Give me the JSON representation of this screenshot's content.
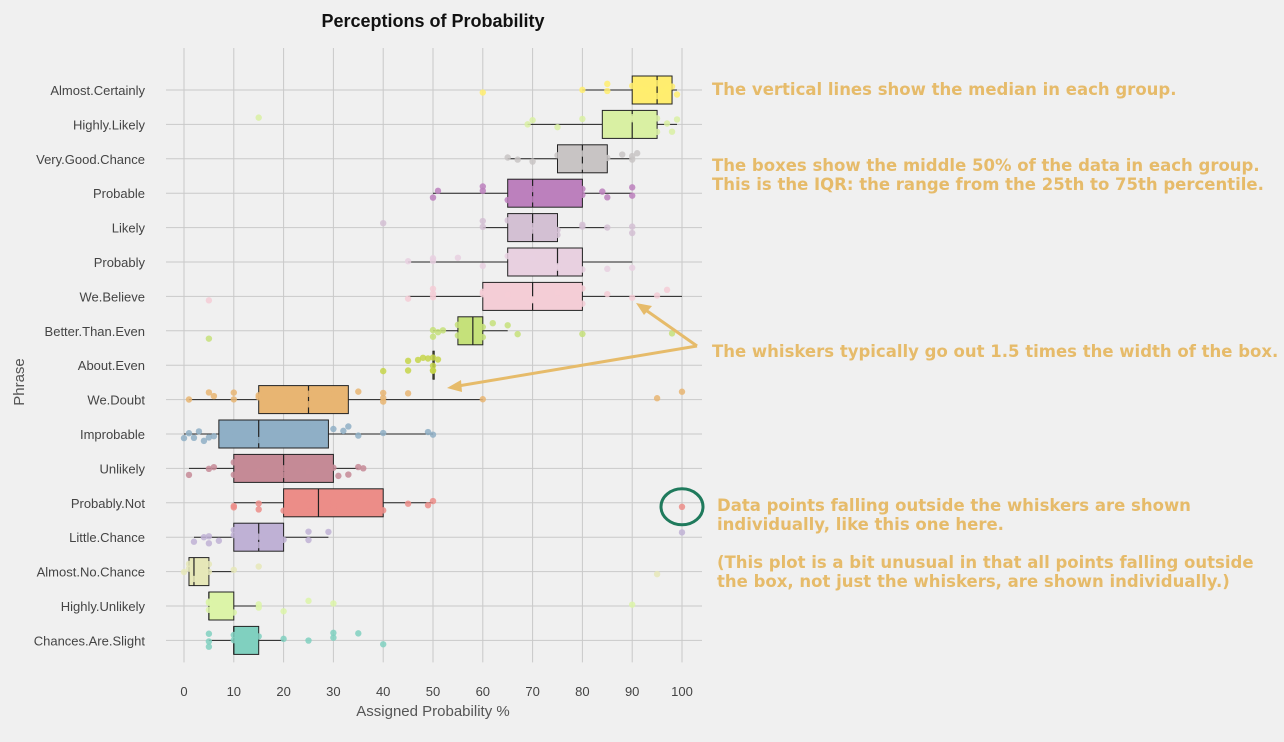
{
  "chart_data": {
    "type": "boxplot",
    "title": "Perceptions of Probability",
    "xlabel": "Assigned Probability %",
    "ylabel": "Phrase",
    "xlim": [
      0,
      100
    ],
    "xticks": [
      0,
      10,
      20,
      30,
      40,
      50,
      60,
      70,
      80,
      90,
      100
    ],
    "grid": true,
    "phrases": [
      {
        "name": "Almost.Certainly",
        "color": "#ffed6f",
        "min": 80,
        "q1": 90,
        "median": 95,
        "q3": 98,
        "max": 99,
        "points": [
          80,
          85,
          85,
          90,
          92,
          93,
          95,
          95,
          96,
          97,
          98,
          99,
          60
        ]
      },
      {
        "name": "Highly.Likely",
        "color": "#d9f0a3",
        "min": 69,
        "q1": 84,
        "median": 90,
        "q3": 95,
        "max": 99,
        "points": [
          15,
          69,
          70,
          75,
          80,
          85,
          85,
          90,
          90,
          92,
          95,
          95,
          97,
          98,
          99
        ]
      },
      {
        "name": "Very.Good.Chance",
        "color": "#c8c4c4",
        "min": 65,
        "q1": 75,
        "median": 80,
        "q3": 85,
        "max": 90,
        "points": [
          65,
          67,
          70,
          75,
          80,
          80,
          85,
          88,
          90,
          90,
          91
        ]
      },
      {
        "name": "Probable",
        "color": "#bc80bd",
        "min": 50,
        "q1": 65,
        "median": 70,
        "q3": 80,
        "max": 90,
        "points": [
          50,
          51,
          60,
          60,
          65,
          70,
          70,
          75,
          80,
          80,
          84,
          85,
          90,
          90
        ]
      },
      {
        "name": "Likely",
        "color": "#d3c0d3",
        "min": 60,
        "q1": 65,
        "median": 70,
        "q3": 75,
        "max": 85,
        "points": [
          40,
          60,
          60,
          65,
          70,
          70,
          75,
          75,
          80,
          80,
          85,
          90,
          90
        ]
      },
      {
        "name": "Probably",
        "color": "#e8d0e0",
        "min": 45,
        "q1": 65,
        "median": 75,
        "q3": 80,
        "max": 90,
        "points": [
          45,
          50,
          50,
          55,
          60,
          65,
          70,
          75,
          75,
          80,
          85,
          90
        ]
      },
      {
        "name": "We.Believe",
        "color": "#f4cdd6",
        "min": 45,
        "q1": 60,
        "median": 70,
        "q3": 80,
        "max": 100,
        "points": [
          5,
          45,
          50,
          50,
          50,
          60,
          60,
          65,
          70,
          70,
          75,
          80,
          80,
          85,
          90,
          95,
          97
        ]
      },
      {
        "name": "Better.Than.Even",
        "color": "#c5e17a",
        "min": 50,
        "q1": 55,
        "median": 58,
        "q3": 60,
        "max": 65,
        "points": [
          5,
          50,
          50,
          51,
          52,
          55,
          55,
          60,
          60,
          62,
          65,
          67,
          80,
          98
        ]
      },
      {
        "name": "About.Even",
        "color": "#c5d54a",
        "min": 50,
        "q1": 50,
        "median": 50,
        "q3": 50,
        "max": 50,
        "points": [
          40,
          45,
          45,
          47,
          48,
          49,
          50,
          50,
          50,
          50,
          51
        ]
      },
      {
        "name": "We.Doubt",
        "color": "#e8b572",
        "min": 1,
        "q1": 15,
        "median": 25,
        "q3": 33,
        "max": 60,
        "points": [
          1,
          5,
          6,
          10,
          10,
          15,
          15,
          20,
          25,
          25,
          30,
          35,
          40,
          40,
          40,
          45,
          60,
          95,
          100
        ]
      },
      {
        "name": "Improbable",
        "color": "#8fafc6",
        "min": 0,
        "q1": 7,
        "median": 15,
        "q3": 29,
        "max": 50,
        "points": [
          0,
          1,
          2,
          3,
          4,
          5,
          6,
          8,
          10,
          12,
          15,
          20,
          25,
          30,
          32,
          33,
          35,
          40,
          49,
          50
        ]
      },
      {
        "name": "Unlikely",
        "color": "#c58a96",
        "min": 1,
        "q1": 10,
        "median": 20,
        "q3": 30,
        "max": 35,
        "points": [
          1,
          5,
          6,
          10,
          10,
          15,
          20,
          20,
          25,
          30,
          31,
          33,
          35,
          36
        ]
      },
      {
        "name": "Probably.Not",
        "color": "#ec8d88",
        "min": 10,
        "q1": 20,
        "median": 27,
        "q3": 40,
        "max": 50,
        "points": [
          10,
          10,
          15,
          15,
          20,
          25,
          30,
          30,
          35,
          40,
          45,
          49,
          50,
          100
        ]
      },
      {
        "name": "Little.Chance",
        "color": "#bfb1d5",
        "min": 2,
        "q1": 10,
        "median": 15,
        "q3": 20,
        "max": 29,
        "points": [
          2,
          4,
          5,
          5,
          7,
          10,
          10,
          15,
          15,
          20,
          25,
          25,
          29,
          100
        ]
      },
      {
        "name": "Almost.No.Chance",
        "color": "#e6e7b8",
        "min": 1,
        "q1": 1,
        "median": 2,
        "q3": 5,
        "max": 10,
        "points": [
          0,
          1,
          1,
          2,
          5,
          5,
          10,
          15,
          95
        ]
      },
      {
        "name": "Highly.Unlikely",
        "color": "#dcf4a8",
        "min": 5,
        "q1": 5,
        "median": 5,
        "q3": 10,
        "max": 15,
        "points": [
          5,
          5,
          5,
          10,
          15,
          15,
          20,
          25,
          30,
          90
        ]
      },
      {
        "name": "Chances.Are.Slight",
        "color": "#80d0bf",
        "min": 5,
        "q1": 10,
        "median": 10,
        "q3": 15,
        "max": 20,
        "points": [
          5,
          5,
          5,
          10,
          10,
          15,
          20,
          25,
          30,
          30,
          35,
          40
        ]
      }
    ]
  },
  "annotations": {
    "median_note": "The vertical lines show the median in each group.",
    "iqr_note_1": "The boxes show the middle 50% of the data in each group.",
    "iqr_note_2": "This is the IQR: the range from the 25th to 75th percentile.",
    "whisker_note": "The whiskers typically go out 1.5 times the width of the box.",
    "outlier_note_1": "Data points falling outside the whiskers are shown",
    "outlier_note_2": "individually, like this one here.",
    "unusual_note_1": "(This plot is a bit unusual in that all points falling outside",
    "unusual_note_2": "the box, not just the whiskers, are shown individually.)",
    "annotation_color": "#e6bb6a",
    "circle_color": "#1f7a5c"
  }
}
